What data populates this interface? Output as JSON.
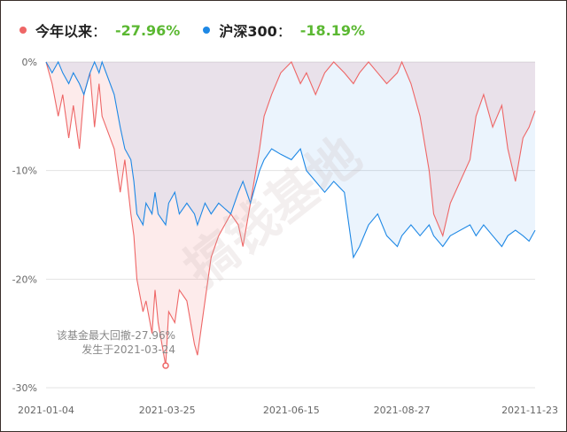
{
  "legend": {
    "fund_name": "今年以来",
    "fund_value": "-27.96%",
    "fund_color": "#ee6666",
    "index_name": "沪深300",
    "index_value": "-18.19%",
    "index_color": "#1e88e5"
  },
  "watermark": "搞钱基地",
  "annotation": {
    "line1": "该基金最大回撤-27.96%",
    "line2": "发生于2021-03-24",
    "date": "2021-03-24",
    "value": -27.96
  },
  "chart_data": {
    "type": "area",
    "title": "",
    "xlabel": "",
    "ylabel": "",
    "ylim": [
      -30,
      0
    ],
    "yticks": [
      0,
      -10,
      -20,
      -30
    ],
    "ytick_labels": [
      "0%",
      "-10%",
      "-20%",
      "-30%"
    ],
    "xlim": [
      "2021-01-04",
      "2021-11-23"
    ],
    "xtick_labels": [
      "2021-01-04",
      "2021-03-25",
      "2021-06-15",
      "2021-08-27",
      "2021-11-23"
    ],
    "grid": true,
    "legend_position": "top-left",
    "series": [
      {
        "name": "今年以来",
        "color": "#ee6666",
        "points": [
          [
            "2021-01-04",
            0
          ],
          [
            "2021-01-08",
            -2
          ],
          [
            "2021-01-12",
            -5
          ],
          [
            "2021-01-15",
            -3
          ],
          [
            "2021-01-19",
            -7
          ],
          [
            "2021-01-22",
            -4
          ],
          [
            "2021-01-26",
            -8
          ],
          [
            "2021-01-29",
            -3
          ],
          [
            "2021-02-02",
            -1
          ],
          [
            "2021-02-05",
            -6
          ],
          [
            "2021-02-08",
            -2
          ],
          [
            "2021-02-10",
            -5
          ],
          [
            "2021-02-18",
            -8
          ],
          [
            "2021-02-22",
            -12
          ],
          [
            "2021-02-25",
            -9
          ],
          [
            "2021-03-01",
            -14
          ],
          [
            "2021-03-03",
            -16
          ],
          [
            "2021-03-05",
            -20
          ],
          [
            "2021-03-09",
            -23
          ],
          [
            "2021-03-11",
            -22
          ],
          [
            "2021-03-15",
            -25
          ],
          [
            "2021-03-17",
            -21
          ],
          [
            "2021-03-19",
            -24
          ],
          [
            "2021-03-24",
            -27.96
          ],
          [
            "2021-03-26",
            -23
          ],
          [
            "2021-03-30",
            -24
          ],
          [
            "2021-04-02",
            -21
          ],
          [
            "2021-04-07",
            -22
          ],
          [
            "2021-04-12",
            -26
          ],
          [
            "2021-04-14",
            -27
          ],
          [
            "2021-04-19",
            -22
          ],
          [
            "2021-04-23",
            -18
          ],
          [
            "2021-04-28",
            -16
          ],
          [
            "2021-05-06",
            -14
          ],
          [
            "2021-05-11",
            -15
          ],
          [
            "2021-05-14",
            -17
          ],
          [
            "2021-05-19",
            -13
          ],
          [
            "2021-05-25",
            -8
          ],
          [
            "2021-05-28",
            -5
          ],
          [
            "2021-06-02",
            -3
          ],
          [
            "2021-06-08",
            -1
          ],
          [
            "2021-06-15",
            0
          ],
          [
            "2021-06-21",
            -2
          ],
          [
            "2021-06-25",
            -1
          ],
          [
            "2021-07-01",
            -3
          ],
          [
            "2021-07-07",
            -1
          ],
          [
            "2021-07-13",
            0
          ],
          [
            "2021-07-20",
            -1
          ],
          [
            "2021-07-26",
            -2
          ],
          [
            "2021-07-30",
            -1
          ],
          [
            "2021-08-05",
            0
          ],
          [
            "2021-08-11",
            -1
          ],
          [
            "2021-08-17",
            -2
          ],
          [
            "2021-08-24",
            -1
          ],
          [
            "2021-08-27",
            0
          ],
          [
            "2021-09-02",
            -2
          ],
          [
            "2021-09-08",
            -5
          ],
          [
            "2021-09-14",
            -10
          ],
          [
            "2021-09-17",
            -14
          ],
          [
            "2021-09-23",
            -16
          ],
          [
            "2021-09-28",
            -13
          ],
          [
            "2021-10-11",
            -9
          ],
          [
            "2021-10-15",
            -5
          ],
          [
            "2021-10-20",
            -3
          ],
          [
            "2021-10-26",
            -6
          ],
          [
            "2021-11-01",
            -4
          ],
          [
            "2021-11-05",
            -8
          ],
          [
            "2021-11-10",
            -11
          ],
          [
            "2021-11-15",
            -7
          ],
          [
            "2021-11-19",
            -6
          ],
          [
            "2021-11-23",
            -4.5
          ]
        ]
      },
      {
        "name": "沪深300",
        "color": "#1e88e5",
        "points": [
          [
            "2021-01-04",
            0
          ],
          [
            "2021-01-08",
            -1
          ],
          [
            "2021-01-12",
            0
          ],
          [
            "2021-01-15",
            -1
          ],
          [
            "2021-01-19",
            -2
          ],
          [
            "2021-01-22",
            -1
          ],
          [
            "2021-01-26",
            -2
          ],
          [
            "2021-01-29",
            -3
          ],
          [
            "2021-02-02",
            -1
          ],
          [
            "2021-02-05",
            0
          ],
          [
            "2021-02-08",
            -1
          ],
          [
            "2021-02-10",
            0
          ],
          [
            "2021-02-18",
            -3
          ],
          [
            "2021-02-22",
            -6
          ],
          [
            "2021-02-25",
            -8
          ],
          [
            "2021-03-01",
            -9
          ],
          [
            "2021-03-03",
            -11
          ],
          [
            "2021-03-05",
            -14
          ],
          [
            "2021-03-09",
            -15
          ],
          [
            "2021-03-11",
            -13
          ],
          [
            "2021-03-15",
            -14
          ],
          [
            "2021-03-17",
            -12
          ],
          [
            "2021-03-19",
            -14
          ],
          [
            "2021-03-24",
            -15
          ],
          [
            "2021-03-26",
            -13
          ],
          [
            "2021-03-30",
            -12
          ],
          [
            "2021-04-02",
            -14
          ],
          [
            "2021-04-07",
            -13
          ],
          [
            "2021-04-12",
            -14
          ],
          [
            "2021-04-14",
            -15
          ],
          [
            "2021-04-19",
            -13
          ],
          [
            "2021-04-23",
            -14
          ],
          [
            "2021-04-28",
            -13
          ],
          [
            "2021-05-06",
            -14
          ],
          [
            "2021-05-11",
            -12
          ],
          [
            "2021-05-14",
            -11
          ],
          [
            "2021-05-19",
            -13
          ],
          [
            "2021-05-25",
            -10
          ],
          [
            "2021-05-28",
            -9
          ],
          [
            "2021-06-02",
            -8
          ],
          [
            "2021-06-08",
            -8.5
          ],
          [
            "2021-06-15",
            -9
          ],
          [
            "2021-06-21",
            -8
          ],
          [
            "2021-06-25",
            -10
          ],
          [
            "2021-07-01",
            -11
          ],
          [
            "2021-07-07",
            -12
          ],
          [
            "2021-07-13",
            -11
          ],
          [
            "2021-07-20",
            -12
          ],
          [
            "2021-07-26",
            -18
          ],
          [
            "2021-07-30",
            -17
          ],
          [
            "2021-08-05",
            -15
          ],
          [
            "2021-08-11",
            -14
          ],
          [
            "2021-08-17",
            -16
          ],
          [
            "2021-08-24",
            -17
          ],
          [
            "2021-08-27",
            -16
          ],
          [
            "2021-09-02",
            -15
          ],
          [
            "2021-09-08",
            -16
          ],
          [
            "2021-09-14",
            -15
          ],
          [
            "2021-09-17",
            -16
          ],
          [
            "2021-09-23",
            -17
          ],
          [
            "2021-09-28",
            -16
          ],
          [
            "2021-10-11",
            -15
          ],
          [
            "2021-10-15",
            -16
          ],
          [
            "2021-10-20",
            -15
          ],
          [
            "2021-10-26",
            -16
          ],
          [
            "2021-11-01",
            -17
          ],
          [
            "2021-11-05",
            -16
          ],
          [
            "2021-11-10",
            -15.5
          ],
          [
            "2021-11-15",
            -16
          ],
          [
            "2021-11-19",
            -16.5
          ],
          [
            "2021-11-23",
            -15.5
          ]
        ]
      }
    ]
  }
}
